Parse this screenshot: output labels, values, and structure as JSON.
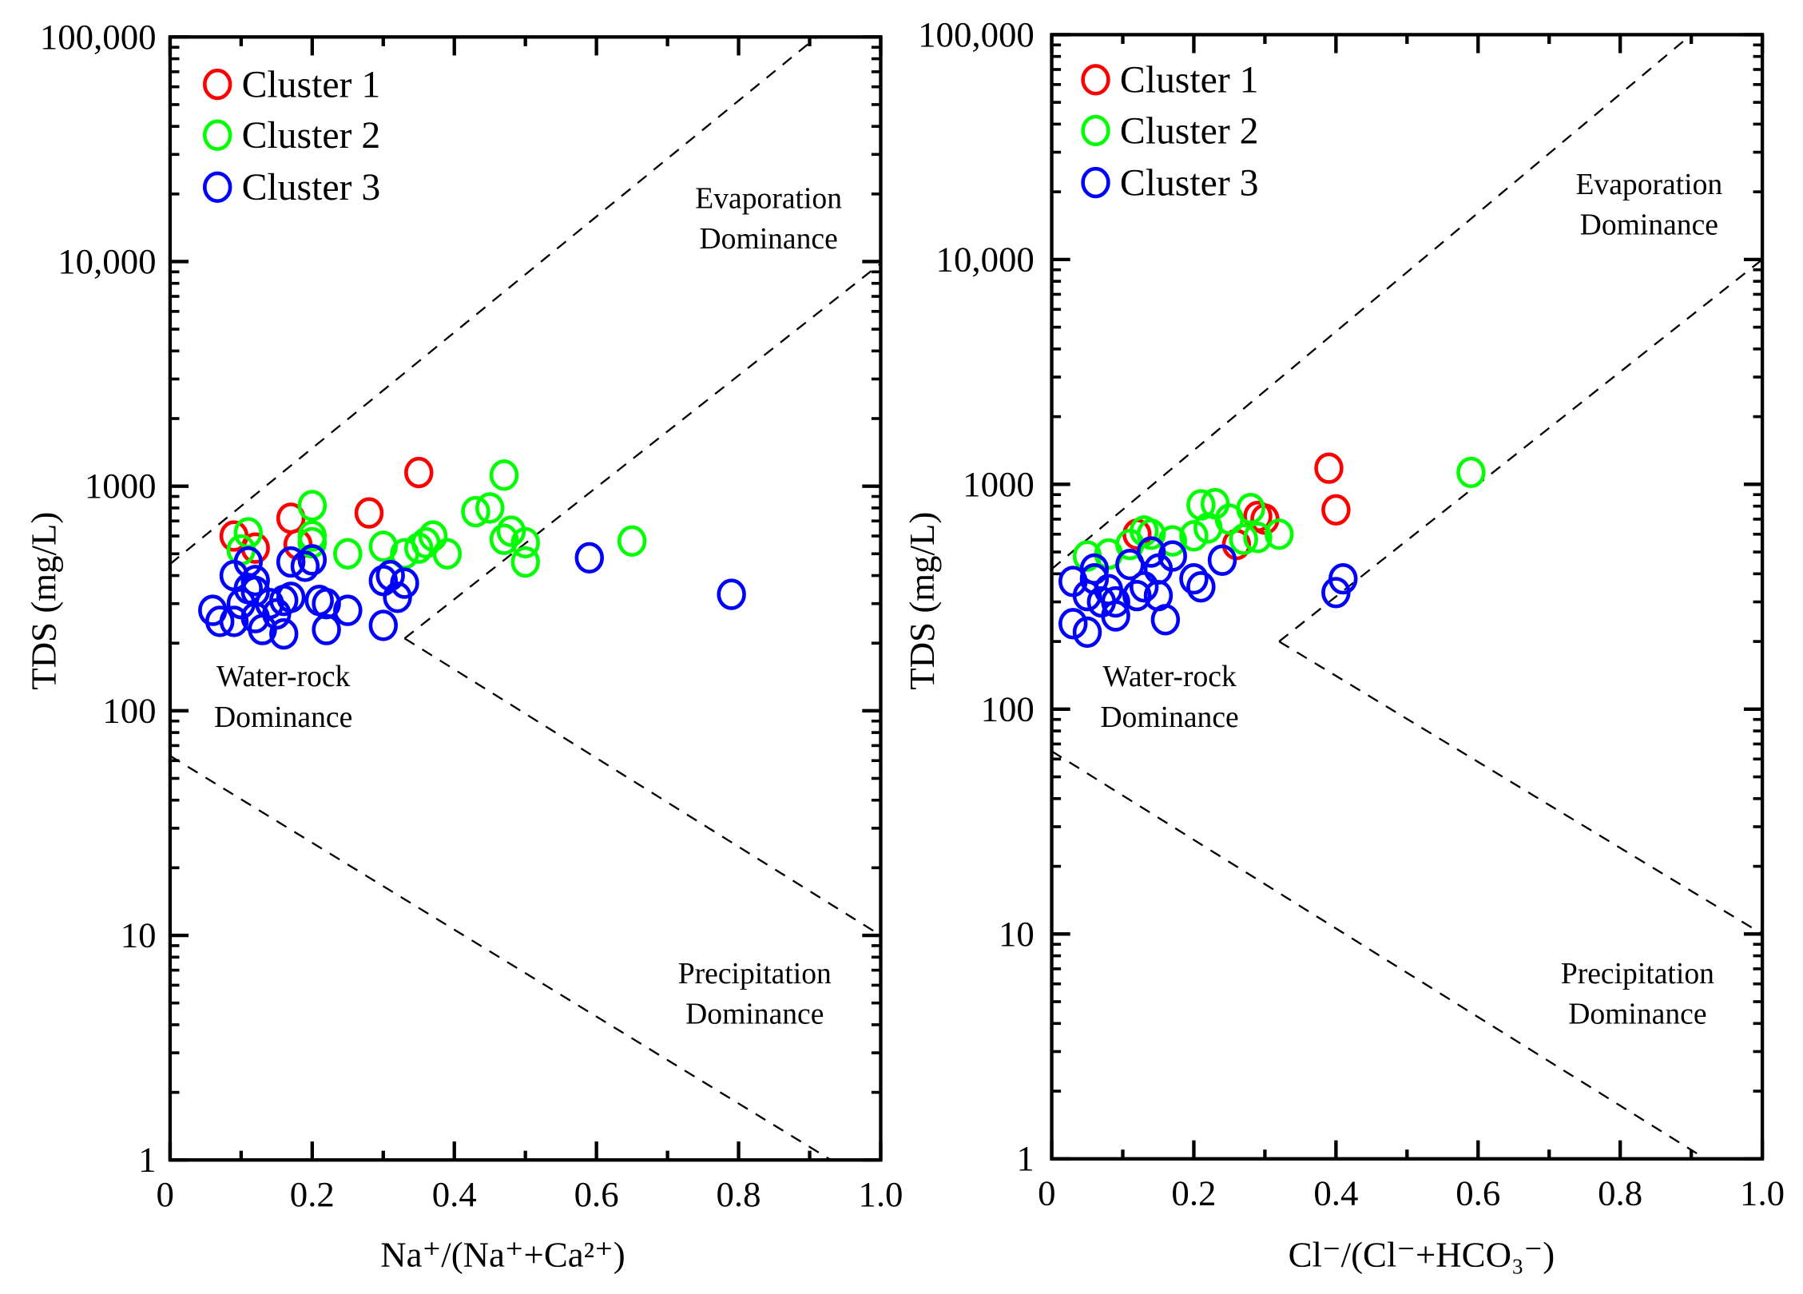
{
  "chart_data": [
    {
      "type": "scatter",
      "title": "",
      "xlabel": "Na⁺/(Na⁺+Ca²⁺)",
      "ylabel": "TDS (mg/L)",
      "xlim": [
        0,
        1.0
      ],
      "ylim": [
        1,
        100000
      ],
      "yscale": "log",
      "xticks": [
        "0",
        "0.2",
        "0.4",
        "0.6",
        "0.8",
        "1.0"
      ],
      "xtick_values": [
        0,
        0.2,
        0.4,
        0.6,
        0.8,
        1.0
      ],
      "yticks": [
        "1",
        "10",
        "100",
        "1000",
        "10,000",
        "100,000"
      ],
      "ytick_values": [
        1,
        10,
        100,
        1000,
        10000,
        100000
      ],
      "legend_position": "top-left",
      "annotations": [
        {
          "lines": [
            "Evaporation",
            "Dominance"
          ],
          "region": "upper-right"
        },
        {
          "lines": [
            "Water-rock",
            "Dominance"
          ],
          "region": "middle-left"
        },
        {
          "lines": [
            "Precipitation",
            "Dominance"
          ],
          "region": "lower-right"
        }
      ],
      "boundary_lines": [
        [
          [
            0,
            450
          ],
          [
            0.91,
            100000
          ]
        ],
        [
          [
            0.33,
            210
          ],
          [
            1.0,
            9800
          ]
        ],
        [
          [
            0.33,
            210
          ],
          [
            1.0,
            10
          ]
        ],
        [
          [
            0,
            63
          ],
          [
            0.93,
            1
          ]
        ]
      ],
      "series": [
        {
          "name": "Cluster 1",
          "color": "#ff0000",
          "points": [
            [
              0.09,
              600
            ],
            [
              0.12,
              530
            ],
            [
              0.17,
              720
            ],
            [
              0.18,
              550
            ],
            [
              0.28,
              760
            ],
            [
              0.35,
              1150
            ]
          ]
        },
        {
          "name": "Cluster 2",
          "color": "#00ff00",
          "points": [
            [
              0.1,
              520
            ],
            [
              0.11,
              620
            ],
            [
              0.2,
              820
            ],
            [
              0.2,
              600
            ],
            [
              0.2,
              560
            ],
            [
              0.25,
              500
            ],
            [
              0.3,
              540
            ],
            [
              0.33,
              500
            ],
            [
              0.35,
              530
            ],
            [
              0.36,
              560
            ],
            [
              0.37,
              600
            ],
            [
              0.39,
              500
            ],
            [
              0.43,
              770
            ],
            [
              0.45,
              800
            ],
            [
              0.47,
              1120
            ],
            [
              0.47,
              580
            ],
            [
              0.48,
              630
            ],
            [
              0.5,
              560
            ],
            [
              0.5,
              460
            ],
            [
              0.65,
              570
            ]
          ]
        },
        {
          "name": "Cluster 3",
          "color": "#0000ff",
          "points": [
            [
              0.06,
              280
            ],
            [
              0.07,
              250
            ],
            [
              0.09,
              250
            ],
            [
              0.09,
              400
            ],
            [
              0.1,
              300
            ],
            [
              0.11,
              350
            ],
            [
              0.11,
              460
            ],
            [
              0.12,
              260
            ],
            [
              0.12,
              380
            ],
            [
              0.12,
              340
            ],
            [
              0.13,
              230
            ],
            [
              0.14,
              300
            ],
            [
              0.15,
              270
            ],
            [
              0.16,
              220
            ],
            [
              0.16,
              310
            ],
            [
              0.17,
              460
            ],
            [
              0.17,
              320
            ],
            [
              0.19,
              440
            ],
            [
              0.2,
              470
            ],
            [
              0.21,
              310
            ],
            [
              0.22,
              230
            ],
            [
              0.22,
              300
            ],
            [
              0.25,
              280
            ],
            [
              0.3,
              380
            ],
            [
              0.3,
              240
            ],
            [
              0.31,
              400
            ],
            [
              0.32,
              320
            ],
            [
              0.33,
              370
            ],
            [
              0.59,
              480
            ],
            [
              0.79,
              330
            ]
          ]
        }
      ]
    },
    {
      "type": "scatter",
      "title": "",
      "xlabel": "Cl⁻/(Cl⁻+HCO₃⁻)",
      "ylabel": "TDS (mg/L)",
      "xlim": [
        0,
        1.0
      ],
      "ylim": [
        1,
        100000
      ],
      "yscale": "log",
      "xticks": [
        "0",
        "0.2",
        "0.4",
        "0.6",
        "0.8",
        "1.0"
      ],
      "xtick_values": [
        0,
        0.2,
        0.4,
        0.6,
        0.8,
        1.0
      ],
      "yticks": [
        "1",
        "10",
        "100",
        "1000",
        "10,000",
        "100,000"
      ],
      "ytick_values": [
        1,
        10,
        100,
        1000,
        10000,
        100000
      ],
      "legend_position": "top-left",
      "annotations": [
        {
          "lines": [
            "Evaporation",
            "Dominance"
          ],
          "region": "upper-right"
        },
        {
          "lines": [
            "Water-rock",
            "Dominance"
          ],
          "region": "middle-left"
        },
        {
          "lines": [
            "Precipitation",
            "Dominance"
          ],
          "region": "lower-right"
        }
      ],
      "boundary_lines": [
        [
          [
            0,
            420
          ],
          [
            0.9,
            100000
          ]
        ],
        [
          [
            0.32,
            200
          ],
          [
            1.0,
            10000
          ]
        ],
        [
          [
            0.32,
            200
          ],
          [
            1.0,
            10
          ]
        ],
        [
          [
            0,
            65
          ],
          [
            0.92,
            1
          ]
        ]
      ],
      "series": [
        {
          "name": "Cluster 1",
          "color": "#ff0000",
          "points": [
            [
              0.12,
              600
            ],
            [
              0.26,
              540
            ],
            [
              0.29,
              720
            ],
            [
              0.3,
              700
            ],
            [
              0.39,
              1180
            ],
            [
              0.4,
              770
            ]
          ]
        },
        {
          "name": "Cluster 2",
          "color": "#00ff00",
          "points": [
            [
              0.05,
              480
            ],
            [
              0.08,
              490
            ],
            [
              0.11,
              540
            ],
            [
              0.13,
              620
            ],
            [
              0.14,
              600
            ],
            [
              0.17,
              560
            ],
            [
              0.2,
              590
            ],
            [
              0.21,
              810
            ],
            [
              0.22,
              640
            ],
            [
              0.23,
              820
            ],
            [
              0.25,
              700
            ],
            [
              0.27,
              570
            ],
            [
              0.28,
              780
            ],
            [
              0.29,
              580
            ],
            [
              0.32,
              600
            ],
            [
              0.59,
              1130
            ]
          ]
        },
        {
          "name": "Cluster 3",
          "color": "#0000ff",
          "points": [
            [
              0.03,
              370
            ],
            [
              0.03,
              240
            ],
            [
              0.05,
              220
            ],
            [
              0.05,
              320
            ],
            [
              0.06,
              420
            ],
            [
              0.06,
              380
            ],
            [
              0.07,
              300
            ],
            [
              0.08,
              340
            ],
            [
              0.09,
              260
            ],
            [
              0.09,
              300
            ],
            [
              0.11,
              440
            ],
            [
              0.12,
              320
            ],
            [
              0.13,
              350
            ],
            [
              0.14,
              500
            ],
            [
              0.15,
              420
            ],
            [
              0.15,
              320
            ],
            [
              0.16,
              250
            ],
            [
              0.17,
              480
            ],
            [
              0.2,
              380
            ],
            [
              0.21,
              350
            ],
            [
              0.24,
              460
            ],
            [
              0.4,
              330
            ],
            [
              0.41,
              380
            ]
          ]
        }
      ]
    }
  ]
}
